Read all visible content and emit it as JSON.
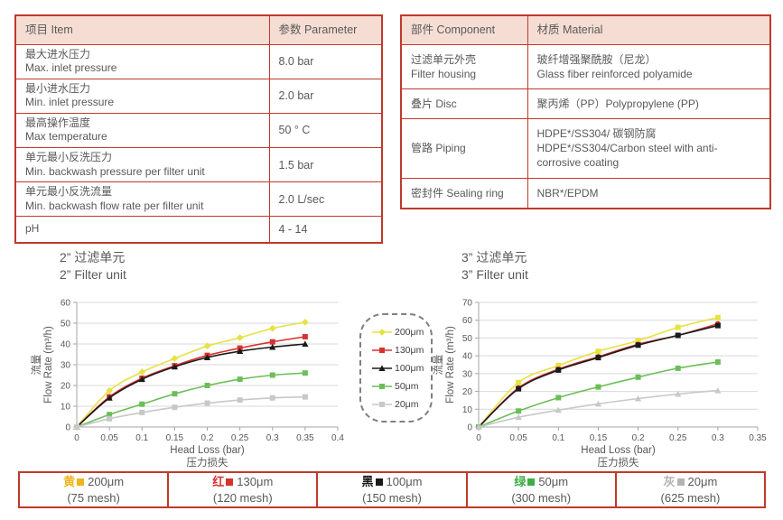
{
  "colors": {
    "table_border": "#c0392b",
    "table_header_bg": "#f6ddd3",
    "text": "#595959",
    "grid": "#d9d9d9",
    "axis": "#a6a6a6"
  },
  "param_table": {
    "headers": [
      "项目 Item",
      "参数 Parameter"
    ],
    "rows": [
      {
        "item": [
          "最大进水压力",
          "Max. inlet pressure"
        ],
        "value": "8.0 bar"
      },
      {
        "item": [
          "最小进水压力",
          "Min. inlet pressure"
        ],
        "value": "2.0 bar"
      },
      {
        "item": [
          "最高操作温度",
          "Max temperature"
        ],
        "value": "50 ° C"
      },
      {
        "item": [
          "单元最小反洗压力",
          "Min. backwash pressure per filter unit"
        ],
        "value": "1.5 bar"
      },
      {
        "item": [
          "单元最小反洗流量",
          "Min. backwash flow rate per filter unit"
        ],
        "value": "2.0 L/sec"
      },
      {
        "item": [
          "pH"
        ],
        "value": "4 - 14"
      }
    ]
  },
  "material_table": {
    "headers": [
      "部件 Component",
      "材质 Material"
    ],
    "rows": [
      {
        "component": [
          "过滤单元外壳",
          "Filter housing"
        ],
        "material": [
          "玻纤增强聚酰胺（尼龙）",
          "Glass fiber reinforced polyamide"
        ]
      },
      {
        "component": [
          "叠片 Disc"
        ],
        "material": [
          "聚丙烯（PP）Polypropylene (PP)"
        ]
      },
      {
        "component": [
          "管路 Piping"
        ],
        "material": [
          "HDPE*/SS304/ 碳钢防腐",
          "HDPE*/SS304/Carbon steel with anti-corrosive coating"
        ]
      },
      {
        "component": [
          "密封件 Sealing ring"
        ],
        "material": [
          "NBR*/EPDM"
        ]
      }
    ]
  },
  "chart_data": [
    {
      "type": "line",
      "title_cn": "2” 过滤单元",
      "title_en": "2” Filter unit",
      "xlabel": "Head Loss (bar)",
      "xlabel_cn": "压力损失",
      "ylabel_cn": "流量",
      "ylabel": "Flow Rate (m³/h)",
      "xlim": [
        0,
        0.4
      ],
      "xstep": 0.05,
      "ylim": [
        0,
        60
      ],
      "ystep": 10,
      "grid": "horizontal",
      "x": [
        0,
        0.05,
        0.1,
        0.15,
        0.2,
        0.25,
        0.3,
        0.35
      ],
      "series": [
        {
          "name": "200μm",
          "color": "#e6e243",
          "marker": "diamond",
          "values": [
            0,
            17.5,
            26.5,
            33,
            39,
            43,
            47.5,
            50.5
          ]
        },
        {
          "name": "130μm",
          "color": "#d9312e",
          "marker": "square",
          "values": [
            0,
            14.5,
            23.5,
            29.5,
            34.5,
            38,
            41,
            43.5
          ]
        },
        {
          "name": "100μm",
          "color": "#1a1a1a",
          "marker": "triangle",
          "values": [
            0,
            14,
            23,
            29,
            33.5,
            36.5,
            38.5,
            40
          ]
        },
        {
          "name": "50μm",
          "color": "#6cbe58",
          "marker": "square",
          "values": [
            0,
            6,
            11,
            16,
            20,
            23,
            25,
            26
          ]
        },
        {
          "name": "20μm",
          "color": "#c8c8c8",
          "marker": "square",
          "values": [
            0,
            4,
            7,
            9.5,
            11.5,
            13,
            14,
            14.5
          ]
        }
      ]
    },
    {
      "type": "line",
      "title_cn": "3” 过滤单元",
      "title_en": "3” Filter unit",
      "xlabel": "Head Loss (bar)",
      "xlabel_cn": "压力损失",
      "ylabel_cn": "流量",
      "ylabel": "Flow Rate (m³/h)",
      "xlim": [
        0,
        0.35
      ],
      "xstep": 0.05,
      "ylim": [
        0,
        70
      ],
      "ystep": 10,
      "grid": "horizontal",
      "x": [
        0,
        0.05,
        0.1,
        0.15,
        0.2,
        0.25,
        0.3
      ],
      "series": [
        {
          "name": "200μm",
          "color": "#e6e243",
          "marker": "square",
          "values": [
            0,
            25,
            34.5,
            42.5,
            48.5,
            56,
            61.5
          ]
        },
        {
          "name": "130μm",
          "color": "#d9312e",
          "marker": "circle",
          "values": [
            0,
            22,
            32.5,
            39.5,
            46.5,
            51.5,
            58
          ]
        },
        {
          "name": "100μm",
          "color": "#1a1a1a",
          "marker": "square",
          "values": [
            0,
            21.5,
            32,
            39,
            46,
            51.5,
            57
          ]
        },
        {
          "name": "50μm",
          "color": "#6cbe58",
          "marker": "square",
          "values": [
            0,
            9,
            16.5,
            22.5,
            28,
            33,
            36.5
          ]
        },
        {
          "name": "20μm",
          "color": "#c8c8c8",
          "marker": "triangle",
          "values": [
            0,
            5.5,
            9.5,
            13,
            16,
            18.5,
            20.5
          ]
        }
      ]
    }
  ],
  "series_legend": {
    "items": [
      {
        "label": "200μm",
        "color": "#e6e243",
        "marker": "diamond"
      },
      {
        "label": "130μm",
        "color": "#d9312e",
        "marker": "square"
      },
      {
        "label": "100μm",
        "color": "#1a1a1a",
        "marker": "triangle"
      },
      {
        "label": "50μm",
        "color": "#6cbe58",
        "marker": "square"
      },
      {
        "label": "20μm",
        "color": "#c8c8c8",
        "marker": "square"
      }
    ]
  },
  "mesh_legend": {
    "cells": [
      {
        "cn": "黄",
        "color": "#efb41e",
        "size": "200μm",
        "mesh": "(75 mesh)"
      },
      {
        "cn": "红",
        "color": "#d9312e",
        "size": "130μm",
        "mesh": "(120 mesh)"
      },
      {
        "cn": "黑",
        "color": "#1a1a1a",
        "size": "100μm",
        "mesh": "(150 mesh)"
      },
      {
        "cn": "绿",
        "color": "#3fae49",
        "size": "50μm",
        "mesh": "(300 mesh)"
      },
      {
        "cn": "灰",
        "color": "#b3b3b6",
        "size": "20μm",
        "mesh": "(625 mesh)"
      }
    ]
  }
}
